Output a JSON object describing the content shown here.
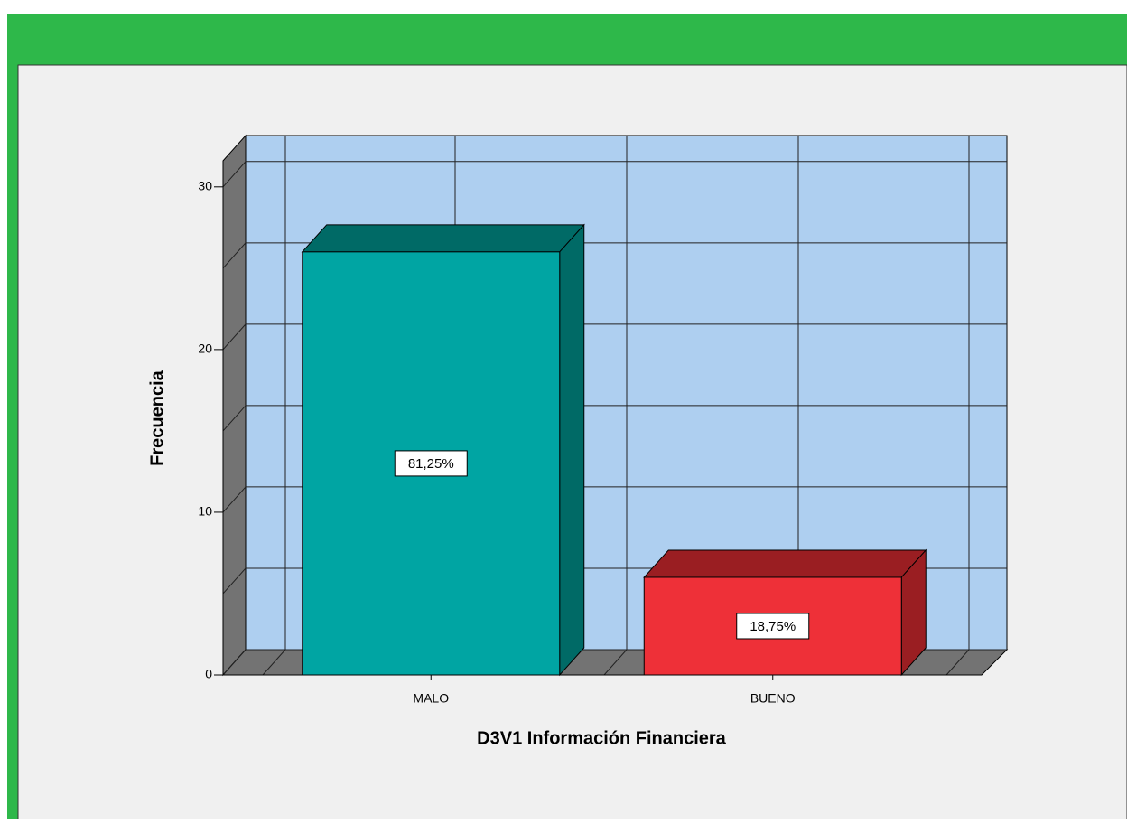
{
  "chart_data": {
    "type": "bar3d",
    "categories": [
      "MALO",
      "BUENO"
    ],
    "values": [
      26,
      6
    ],
    "bar_labels": [
      "81,25%",
      "18,75%"
    ],
    "colors": [
      "#00a5a3",
      "#ee3038"
    ],
    "side_colors": [
      "#006a66",
      "#9a1e22"
    ],
    "x_label": "D3V1 Información Financiera",
    "y_label": "Frecuencia",
    "ylim": [
      0,
      31.6
    ],
    "yticks": [
      0,
      10,
      20,
      30
    ],
    "minor_yticks": [
      5,
      15,
      25
    ],
    "grid": true
  }
}
